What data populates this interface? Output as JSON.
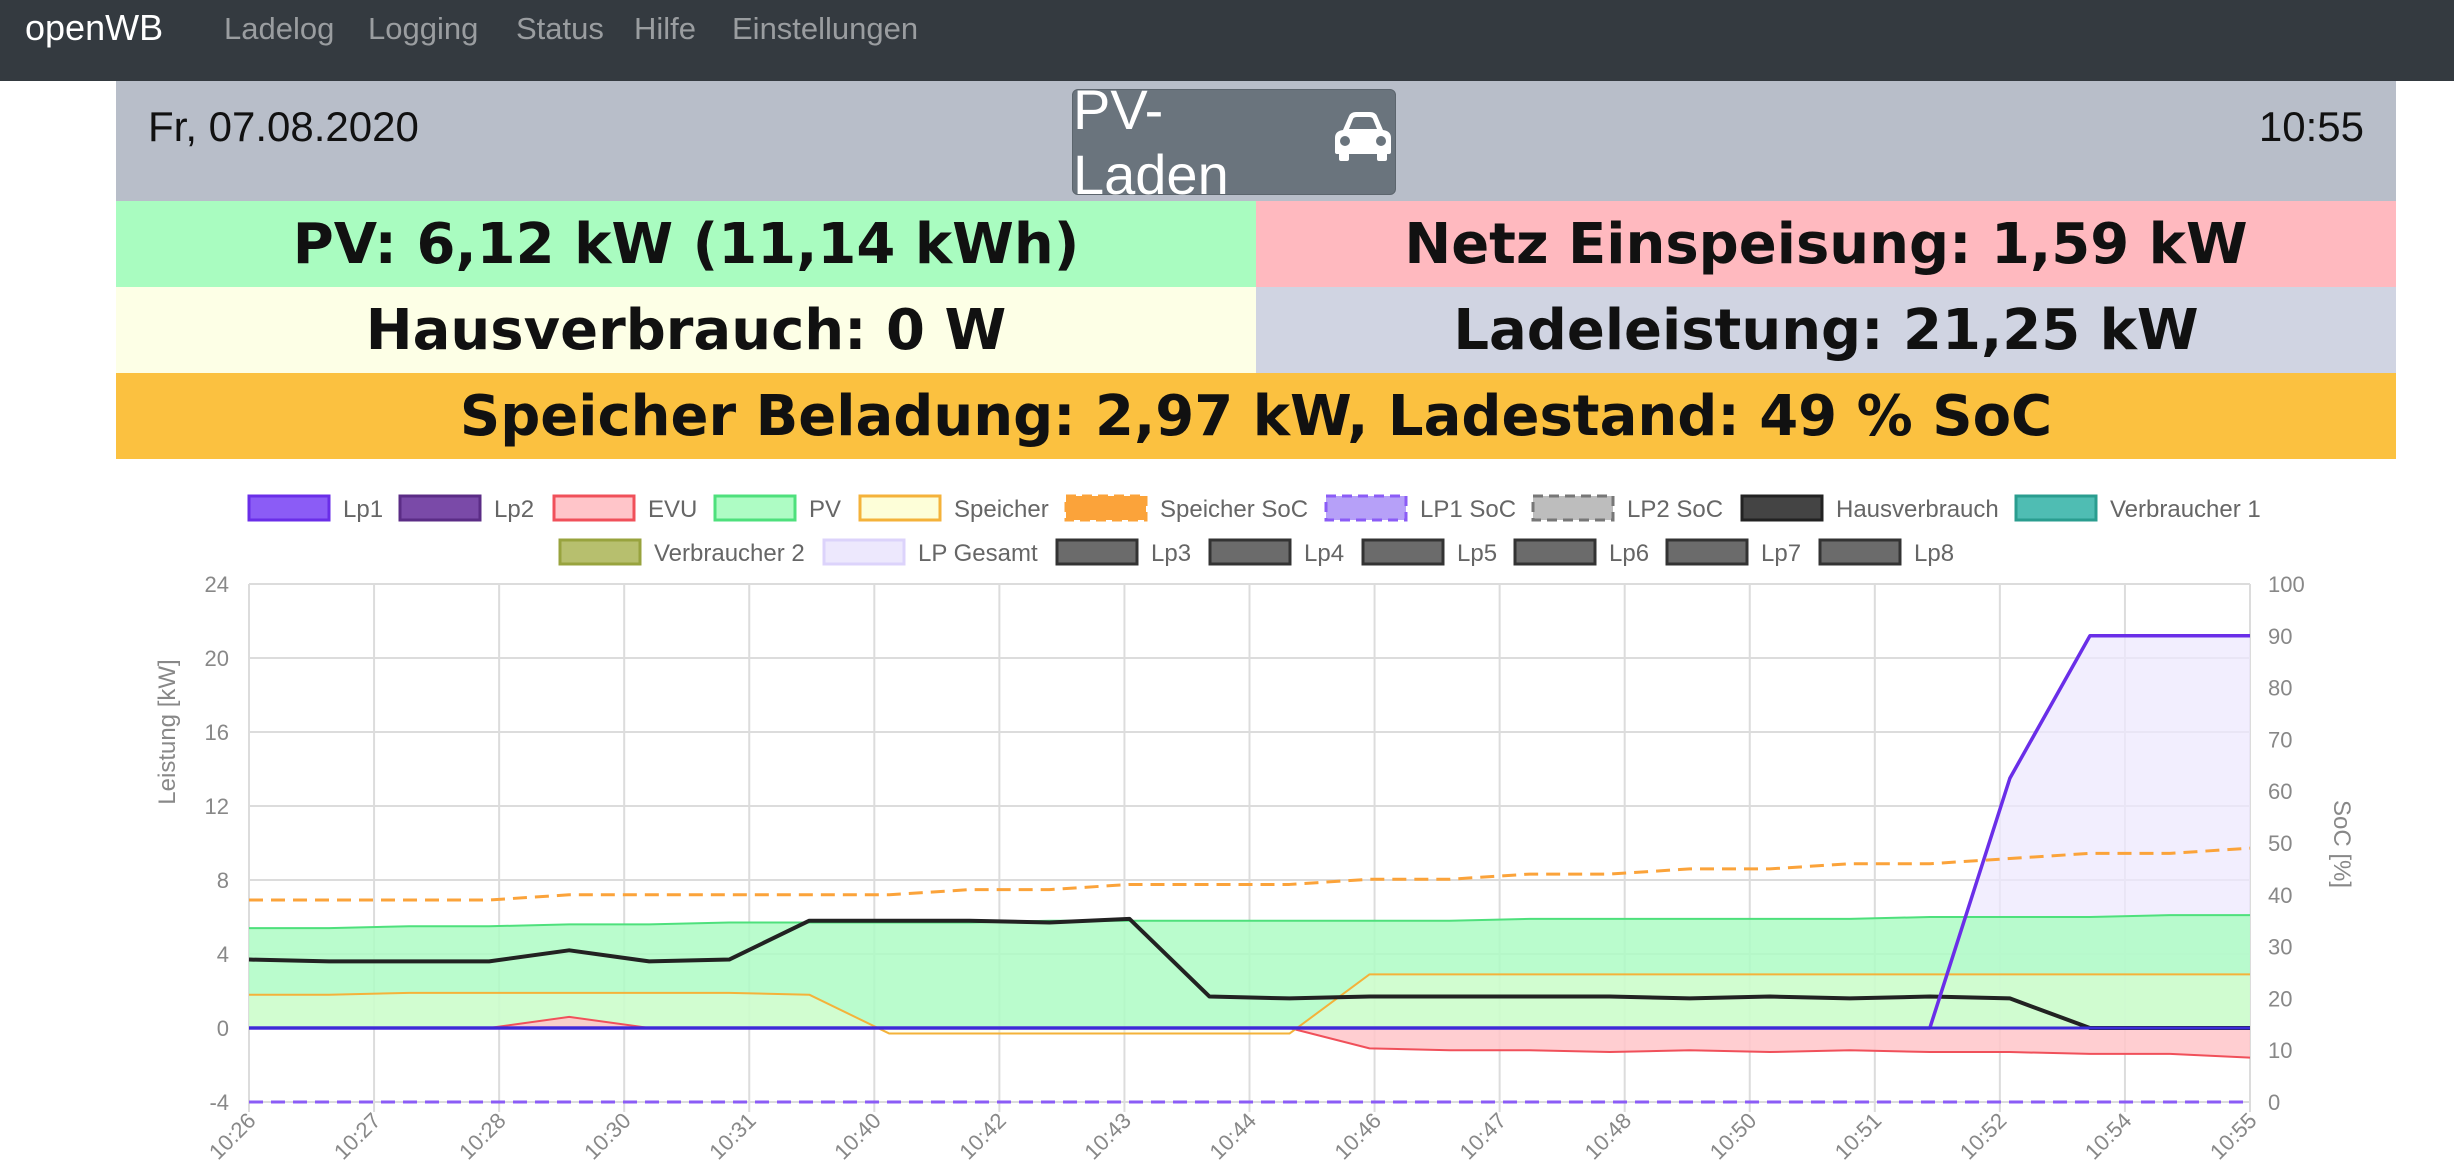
{
  "nav": {
    "brand": "openWB",
    "items": [
      "Ladelog",
      "Logging",
      "Status",
      "Hilfe",
      "Einstellungen"
    ]
  },
  "header": {
    "date": "Fr, 07.08.2020",
    "time": "10:55",
    "mode_button": "PV-Laden",
    "mode_icon": "car-icon"
  },
  "summary": {
    "pv": "PV: 6,12 kW (11,14 kWh)",
    "netz": "Netz Einspeisung: 1,59 kW",
    "haus": "Hausverbrauch: 0 W",
    "lade": "Ladeleistung: 21,25 kW",
    "speicher": "Speicher Beladung: 2,97 kW, Ladestand: 49 % SoC"
  },
  "colors": {
    "pv_bg": "#a9fcc0",
    "netz_bg": "#ffb9bf",
    "haus_bg": "#fdffe6",
    "lade_bg": "#d0d4e2",
    "speicher_bg": "#fbc140",
    "nav_bg": "#343a40",
    "header_bg": "#b8bec9"
  },
  "chart_data": {
    "type": "line",
    "ylabel": "Leistung [kW]",
    "y2label": "SoC [%]",
    "ylim": [
      -4,
      24
    ],
    "y2lim": [
      0,
      100
    ],
    "yticks": [
      "24",
      "20",
      "16",
      "12",
      "8",
      "4",
      "0",
      "-4"
    ],
    "y2ticks": [
      "100",
      "90",
      "80",
      "70",
      "60",
      "50",
      "40",
      "30",
      "20",
      "10",
      "0"
    ],
    "x_tick_labels": [
      "10:26",
      "10:27",
      "10:28",
      "10:30",
      "10:31",
      "10:40",
      "10:42",
      "10:43",
      "10:44",
      "10:46",
      "10:47",
      "10:48",
      "10:50",
      "10:51",
      "10:52",
      "10:54",
      "10:55"
    ],
    "grid": true,
    "legend_position": "top",
    "legend": [
      {
        "label": "Lp1",
        "fill": "#8b5cf6",
        "stroke": "#6a2ee8",
        "dash": false
      },
      {
        "label": "Lp2",
        "fill": "#7a4aa8",
        "stroke": "#5b2c86",
        "dash": false
      },
      {
        "label": "EVU",
        "fill": "#ffc5c9",
        "stroke": "#f0505a",
        "dash": false
      },
      {
        "label": "PV",
        "fill": "#aefcc4",
        "stroke": "#4ee07c",
        "dash": false
      },
      {
        "label": "Speicher",
        "fill": "#fdfed8",
        "stroke": "#f4b23a",
        "dash": false
      },
      {
        "label": "Speicher SoC",
        "fill": "#fba33a",
        "stroke": "#fba33a",
        "dash": true
      },
      {
        "label": "LP1 SoC",
        "fill": "#b6a0f8",
        "stroke": "#8b5cf6",
        "dash": true
      },
      {
        "label": "LP2 SoC",
        "fill": "#bdbdbd",
        "stroke": "#777777",
        "dash": true
      },
      {
        "label": "Hausverbrauch",
        "fill": "#444444",
        "stroke": "#222222",
        "dash": false
      },
      {
        "label": "Verbraucher 1",
        "fill": "#4fbdb3",
        "stroke": "#2a9d8f",
        "dash": false
      },
      {
        "label": "Verbraucher 2",
        "fill": "#b7bf6e",
        "stroke": "#98a33e",
        "dash": false
      },
      {
        "label": "LP Gesamt",
        "fill": "#ede8fd",
        "stroke": "#dcd3fb",
        "dash": false
      },
      {
        "label": "Lp3",
        "fill": "#6b6b6b",
        "stroke": "#333333",
        "dash": false
      },
      {
        "label": "Lp4",
        "fill": "#6b6b6b",
        "stroke": "#333333",
        "dash": false
      },
      {
        "label": "Lp5",
        "fill": "#6b6b6b",
        "stroke": "#333333",
        "dash": false
      },
      {
        "label": "Lp6",
        "fill": "#6b6b6b",
        "stroke": "#333333",
        "dash": false
      },
      {
        "label": "Lp7",
        "fill": "#6b6b6b",
        "stroke": "#333333",
        "dash": false
      },
      {
        "label": "Lp8",
        "fill": "#6b6b6b",
        "stroke": "#333333",
        "dash": false
      }
    ],
    "x_index": [
      0,
      4,
      8,
      12,
      16,
      20,
      24,
      28,
      32,
      36,
      40,
      44,
      48,
      52,
      56,
      60,
      64,
      68,
      72,
      76,
      80,
      84,
      88,
      92,
      96,
      100
    ],
    "series": [
      {
        "name": "PV",
        "axis": "left",
        "values": [
          5.4,
          5.4,
          5.5,
          5.5,
          5.6,
          5.6,
          5.7,
          5.7,
          5.7,
          5.7,
          5.8,
          5.8,
          5.8,
          5.8,
          5.8,
          5.8,
          5.9,
          5.9,
          5.9,
          5.9,
          5.9,
          6.0,
          6.0,
          6.0,
          6.1,
          6.1
        ]
      },
      {
        "name": "Speicher",
        "axis": "left",
        "values": [
          1.8,
          1.8,
          1.9,
          1.9,
          1.9,
          1.9,
          1.9,
          1.8,
          -0.3,
          -0.3,
          -0.3,
          -0.3,
          -0.3,
          -0.3,
          2.9,
          2.9,
          2.9,
          2.9,
          2.9,
          2.9,
          2.9,
          2.9,
          2.9,
          2.9,
          2.9,
          2.9
        ]
      },
      {
        "name": "EVU",
        "axis": "left",
        "values": [
          0,
          0,
          0,
          0,
          0.6,
          0,
          0,
          0,
          0,
          0,
          0,
          0,
          0,
          0,
          -1.1,
          -1.2,
          -1.2,
          -1.3,
          -1.2,
          -1.3,
          -1.2,
          -1.3,
          -1.3,
          -1.4,
          -1.4,
          -1.6
        ]
      },
      {
        "name": "Hausverbrauch",
        "axis": "left",
        "values": [
          3.7,
          3.6,
          3.6,
          3.6,
          4.2,
          3.6,
          3.7,
          5.8,
          5.8,
          5.8,
          5.7,
          5.9,
          1.7,
          1.6,
          1.7,
          1.7,
          1.7,
          1.7,
          1.6,
          1.7,
          1.6,
          1.7,
          1.6,
          0,
          0,
          0
        ]
      },
      {
        "name": "Lp1",
        "axis": "left",
        "values": [
          0,
          0,
          0,
          0,
          0,
          0,
          0,
          0,
          0,
          0,
          0,
          0,
          0,
          0,
          0,
          0,
          0,
          0,
          0,
          0,
          0,
          0,
          13.5,
          21.2,
          21.2,
          21.2
        ]
      },
      {
        "name": "LP Gesamt",
        "axis": "left",
        "values": [
          0,
          0,
          0,
          0,
          0,
          0,
          0,
          0,
          0,
          0,
          0,
          0,
          0,
          0,
          0,
          0,
          0,
          0,
          0,
          0,
          0,
          0,
          13.5,
          21.2,
          21.2,
          21.2
        ]
      },
      {
        "name": "Speicher SoC",
        "axis": "right",
        "values": [
          39,
          39,
          39,
          39,
          40,
          40,
          40,
          40,
          40,
          41,
          41,
          42,
          42,
          42,
          43,
          43,
          44,
          44,
          45,
          45,
          46,
          46,
          47,
          48,
          48,
          49
        ]
      },
      {
        "name": "LP1 SoC",
        "axis": "right",
        "values": [
          0,
          0,
          0,
          0,
          0,
          0,
          0,
          0,
          0,
          0,
          0,
          0,
          0,
          0,
          0,
          0,
          0,
          0,
          0,
          0,
          0,
          0,
          0,
          0,
          0,
          0
        ]
      }
    ]
  }
}
